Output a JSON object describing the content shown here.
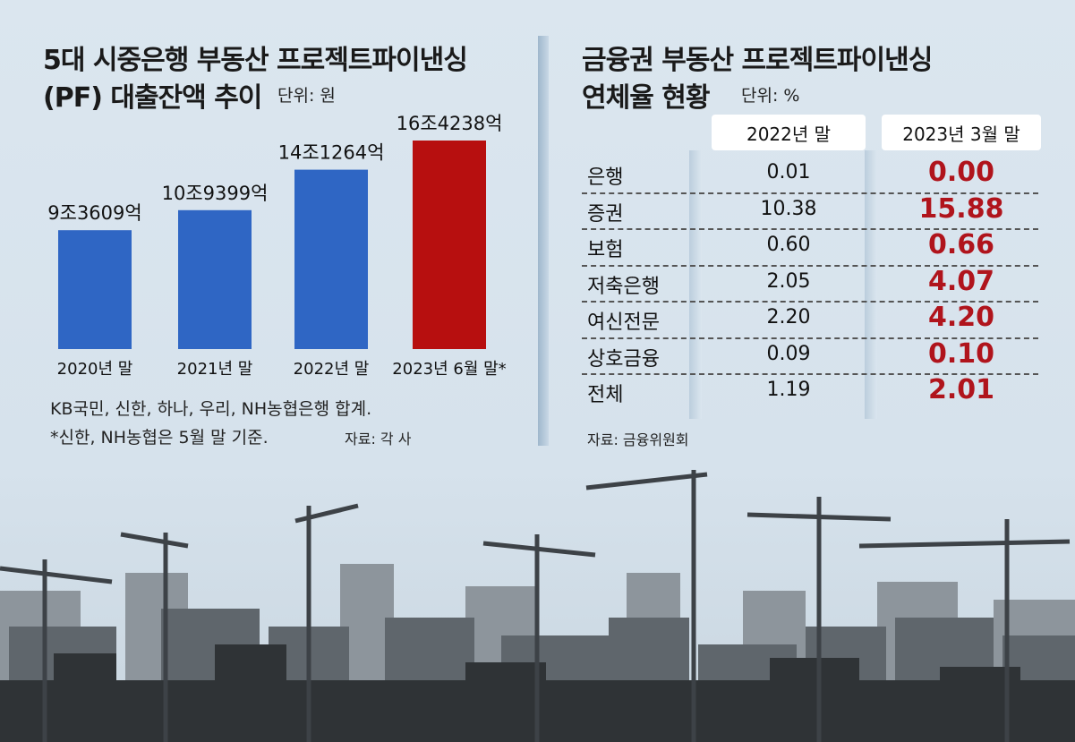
{
  "chart_data": [
    {
      "type": "bar",
      "title": "5대 시중은행 부동산 프로젝트파이낸싱",
      "title_line2": "(PF) 대출잔액 추이",
      "unit": "단위: 원",
      "categories": [
        "2020년 말",
        "2021년 말",
        "2022년 말",
        "2023년 6월 말*"
      ],
      "values": [
        93609,
        109399,
        141264,
        164238
      ],
      "value_unit": "억 원",
      "data_labels": [
        "9조3609억",
        "10조9399억",
        "14조1264억",
        "16조4238억"
      ],
      "colors": [
        "#2f66c4",
        "#2f66c4",
        "#2f66c4",
        "#b70f0f"
      ],
      "notes": [
        "KB국민, 신한, 하나, 우리, NH농협은행 합계.",
        "*신한, NH농협은 5월 말 기준."
      ],
      "source": "자료: 각 사"
    },
    {
      "type": "table",
      "title": "금융권 부동산 프로젝트파이낸싱",
      "title_line2": "연체율 현황",
      "unit": "단위: %",
      "columns": [
        "2022년 말",
        "2023년 3월 말"
      ],
      "rows": [
        {
          "label": "은행",
          "values": [
            "0.01",
            "0.00"
          ]
        },
        {
          "label": "증권",
          "values": [
            "10.38",
            "15.88"
          ]
        },
        {
          "label": "보험",
          "values": [
            "0.60",
            "0.66"
          ]
        },
        {
          "label": "저축은행",
          "values": [
            "2.05",
            "4.07"
          ]
        },
        {
          "label": "여신전문",
          "values": [
            "2.20",
            "4.20"
          ]
        },
        {
          "label": "상호금융",
          "values": [
            "0.09",
            "0.10"
          ]
        },
        {
          "label": "전체",
          "values": [
            "1.19",
            "2.01"
          ]
        }
      ],
      "highlight_color": "#b0141c",
      "source": "자료: 금융위원회"
    }
  ]
}
